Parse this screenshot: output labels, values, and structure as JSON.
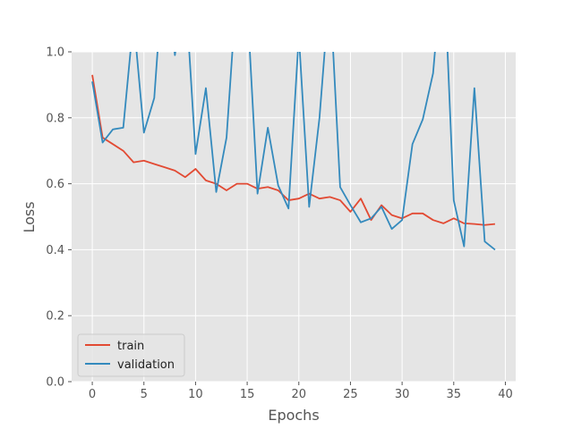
{
  "chart_data": {
    "type": "line",
    "title": "",
    "xlabel": "Epochs",
    "ylabel": "Loss",
    "xlim": [
      -2,
      41
    ],
    "ylim": [
      0,
      1.0
    ],
    "xticks": [
      0,
      5,
      10,
      15,
      20,
      25,
      30,
      35,
      40
    ],
    "yticks": [
      0.0,
      0.2,
      0.4,
      0.6,
      0.8,
      1.0
    ],
    "xtick_labels": [
      "0",
      "5",
      "10",
      "15",
      "20",
      "25",
      "30",
      "35",
      "40"
    ],
    "ytick_labels": [
      "0.0",
      "0.2",
      "0.4",
      "0.6",
      "0.8",
      "1.0"
    ],
    "grid": true,
    "legend_position": "lower-left",
    "x": [
      0,
      1,
      2,
      3,
      4,
      5,
      6,
      7,
      8,
      9,
      10,
      11,
      12,
      13,
      14,
      15,
      16,
      17,
      18,
      19,
      20,
      21,
      22,
      23,
      24,
      25,
      26,
      27,
      28,
      29,
      30,
      31,
      32,
      33,
      34,
      35,
      36,
      37,
      38,
      39
    ],
    "series": [
      {
        "name": "train",
        "color": "#E24A33",
        "values": [
          0.93,
          0.74,
          0.72,
          0.7,
          0.665,
          0.67,
          0.66,
          0.65,
          0.64,
          0.62,
          0.645,
          0.61,
          0.6,
          0.58,
          0.6,
          0.6,
          0.585,
          0.59,
          0.58,
          0.55,
          0.555,
          0.57,
          0.555,
          0.56,
          0.55,
          0.515,
          0.555,
          0.49,
          0.535,
          0.505,
          0.495,
          0.51,
          0.51,
          0.49,
          0.48,
          0.495,
          0.48,
          0.478,
          0.475,
          0.478
        ]
      },
      {
        "name": "validation",
        "color": "#348ABD",
        "values": [
          0.91,
          0.725,
          0.765,
          0.77,
          1.1,
          0.755,
          0.86,
          1.3,
          0.99,
          1.2,
          0.69,
          0.89,
          0.575,
          0.74,
          1.2,
          1.15,
          0.57,
          0.77,
          0.595,
          0.525,
          1.05,
          0.53,
          0.8,
          1.2,
          0.59,
          0.535,
          0.483,
          0.495,
          0.53,
          0.463,
          0.49,
          0.72,
          0.795,
          0.935,
          1.3,
          0.55,
          0.41,
          0.89,
          0.425,
          0.4
        ]
      }
    ]
  }
}
